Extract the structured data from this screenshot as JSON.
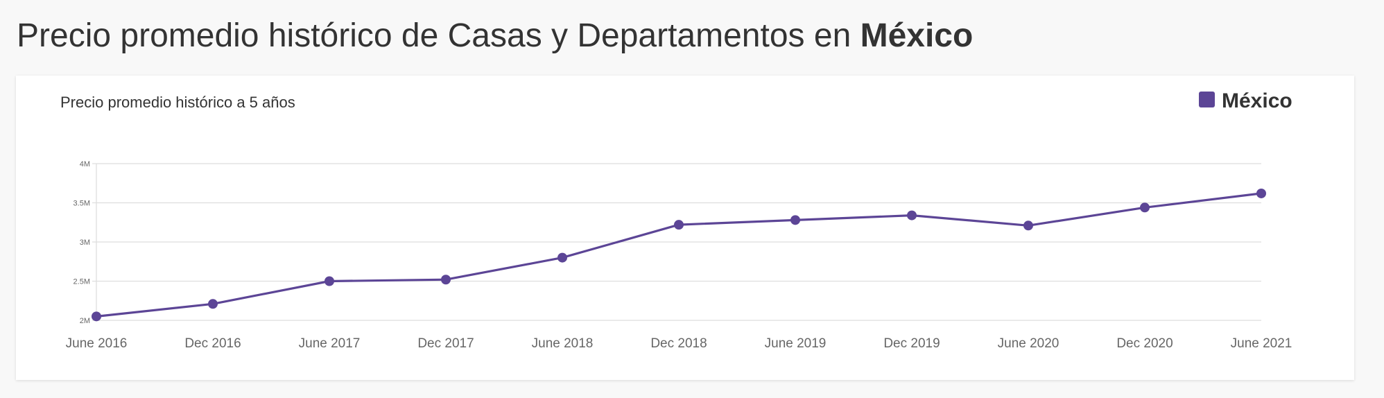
{
  "header": {
    "title_prefix": "Precio promedio histórico de Casas y Departamentos en ",
    "title_location": "México"
  },
  "chart_data": {
    "type": "line",
    "title": "Precio promedio histórico a 5 años",
    "categories": [
      "June 2016",
      "Dec 2016",
      "June 2017",
      "Dec 2017",
      "June 2018",
      "Dec 2018",
      "June 2019",
      "Dec 2019",
      "June 2020",
      "Dec 2020",
      "June 2021"
    ],
    "series": [
      {
        "name": "México",
        "color": "#5c4596",
        "values": [
          2050000,
          2210000,
          2500000,
          2520000,
          2800000,
          3220000,
          3280000,
          3340000,
          3210000,
          3440000,
          3620000
        ]
      }
    ],
    "y_ticks": [
      {
        "value": 2000000,
        "label": "2M"
      },
      {
        "value": 2500000,
        "label": "2.5M"
      },
      {
        "value": 3000000,
        "label": "3M"
      },
      {
        "value": 3500000,
        "label": "3.5M"
      },
      {
        "value": 4000000,
        "label": "4M"
      }
    ],
    "ylim": [
      2000000,
      4000000
    ],
    "grid": true,
    "legend_position": "top-right",
    "xlabel": "",
    "ylabel": ""
  },
  "colors": {
    "series": "#5c4596",
    "grid": "#dddddd",
    "text": "#333333",
    "tick_text": "#666666"
  }
}
